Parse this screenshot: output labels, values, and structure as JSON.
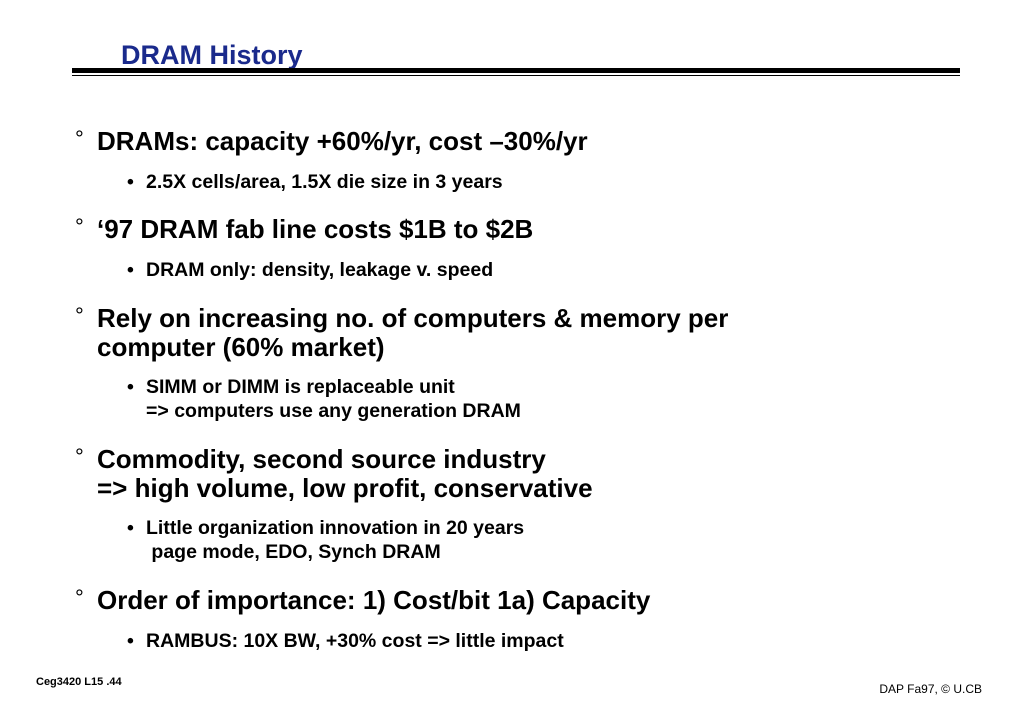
{
  "slide": {
    "title": "DRAM History",
    "bullets": [
      {
        "text": "DRAMs: capacity +60%/yr, cost –30%/yr",
        "sub": [
          "2.5X cells/area, 1.5X die size in 3 years"
        ]
      },
      {
        "text": "‘97 DRAM fab line costs $1B to $2B",
        "sub": [
          "DRAM only: density, leakage v. speed"
        ]
      },
      {
        "text": "Rely on increasing no. of computers & memory per\ncomputer (60% market)",
        "sub": [
          "SIMM or DIMM is replaceable unit\n=> computers use any generation DRAM"
        ]
      },
      {
        "text": "Commodity, second source industry\n=> high volume, low profit, conservative",
        "sub": [
          "Little organization innovation in 20 years\n page mode, EDO, Synch DRAM"
        ]
      },
      {
        "text": "Order of importance: 1) Cost/bit 1a) Capacity",
        "sub": [
          "RAMBUS: 10X BW, +30% cost => little impact"
        ]
      }
    ],
    "bullet_symbol": "°",
    "sub_bullet_symbol": "•"
  },
  "footer": {
    "left": "Ceg3420 L15 .44",
    "right": "DAP Fa97, © U.CB"
  },
  "colors": {
    "title": "#1a2a8c",
    "text": "#000000",
    "background": "#ffffff"
  }
}
